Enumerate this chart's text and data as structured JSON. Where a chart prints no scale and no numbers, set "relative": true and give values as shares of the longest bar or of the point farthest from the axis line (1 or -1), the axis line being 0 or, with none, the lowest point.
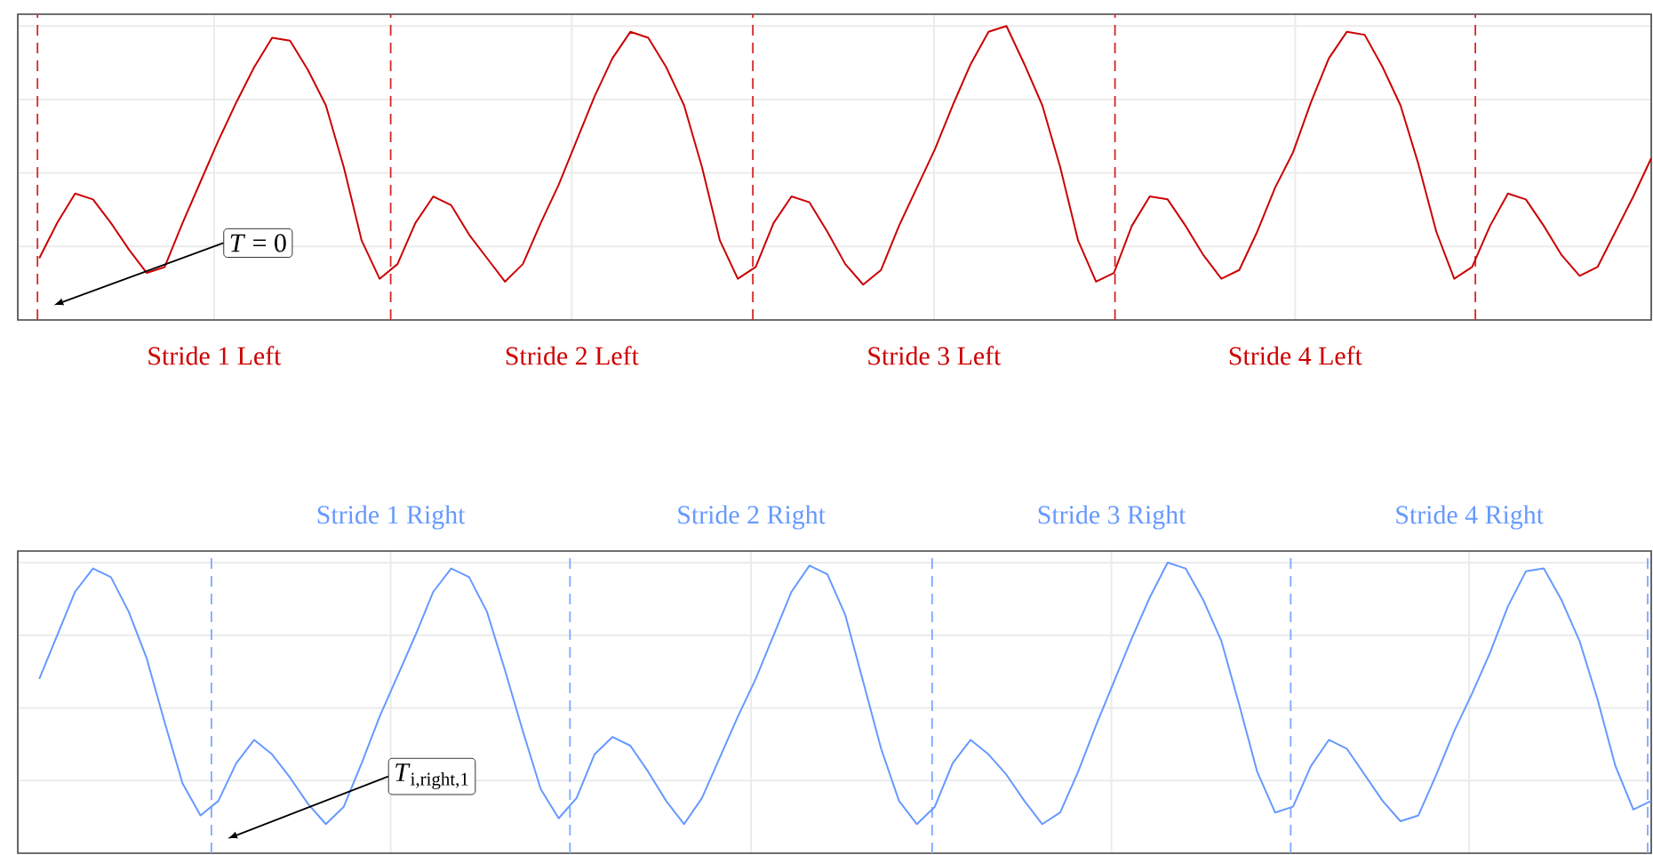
{
  "chart_data": [
    {
      "type": "line",
      "relative": true,
      "grid": true,
      "tick_labels": false,
      "categories": [
        null,
        null,
        null,
        null,
        null,
        null,
        null,
        null,
        null,
        null,
        null,
        null,
        null,
        null,
        null,
        null,
        null,
        null,
        null,
        null,
        null,
        null,
        null,
        null,
        null,
        null,
        null,
        null,
        null,
        null,
        null,
        null,
        null,
        null,
        null,
        null,
        null,
        null,
        null,
        null,
        null,
        null,
        null,
        null,
        null,
        null,
        null,
        null,
        null,
        null,
        null,
        null,
        null,
        null,
        null,
        null,
        null,
        null,
        null,
        null,
        null,
        null,
        null,
        null,
        null,
        null,
        null,
        null,
        null,
        null,
        null,
        null,
        null,
        null,
        null,
        null,
        null,
        null,
        null,
        null,
        null,
        null,
        null,
        null,
        null,
        null,
        null,
        null,
        null,
        null,
        null
      ],
      "series": [
        {
          "color": "#cc0000",
          "values": [
            0.21,
            0.33,
            0.43,
            0.41,
            0.33,
            0.24,
            0.16,
            0.18,
            0.33,
            0.47,
            0.61,
            0.74,
            0.86,
            0.96,
            0.95,
            0.85,
            0.73,
            0.52,
            0.27,
            0.14,
            0.19,
            0.33,
            0.42,
            0.39,
            0.29,
            0.21,
            0.13,
            0.19,
            0.33,
            0.46,
            0.61,
            0.76,
            0.89,
            0.98,
            0.96,
            0.86,
            0.73,
            0.52,
            0.27,
            0.14,
            0.18,
            0.33,
            0.42,
            0.4,
            0.3,
            0.19,
            0.12,
            0.17,
            0.32,
            0.45,
            0.58,
            0.73,
            0.87,
            0.98,
            1.0,
            0.87,
            0.73,
            0.52,
            0.27,
            0.13,
            0.16,
            0.32,
            0.42,
            0.41,
            0.32,
            0.22,
            0.14,
            0.17,
            0.3,
            0.45,
            0.57,
            0.74,
            0.89,
            0.98,
            0.97,
            0.86,
            0.73,
            0.53,
            0.3,
            0.14,
            0.18,
            0.32,
            0.43,
            0.41,
            0.32,
            0.22,
            0.15,
            0.18,
            0.3,
            0.42,
            0.55
          ]
        }
      ],
      "annotations": [
        "*T* = 0",
        "Stride 1 Left",
        "Stride 2 Left",
        "Stride 3 Left",
        "Stride 4 Left"
      ]
    },
    {
      "type": "line",
      "relative": true,
      "grid": true,
      "tick_labels": false,
      "categories": [
        null,
        null,
        null,
        null,
        null,
        null,
        null,
        null,
        null,
        null,
        null,
        null,
        null,
        null,
        null,
        null,
        null,
        null,
        null,
        null,
        null,
        null,
        null,
        null,
        null,
        null,
        null,
        null,
        null,
        null,
        null,
        null,
        null,
        null,
        null,
        null,
        null,
        null,
        null,
        null,
        null,
        null,
        null,
        null,
        null,
        null,
        null,
        null,
        null,
        null,
        null,
        null,
        null,
        null,
        null,
        null,
        null,
        null,
        null,
        null,
        null,
        null,
        null,
        null,
        null,
        null,
        null,
        null,
        null,
        null,
        null,
        null,
        null,
        null,
        null,
        null,
        null,
        null,
        null,
        null,
        null,
        null,
        null,
        null,
        null,
        null,
        null,
        null,
        null,
        null,
        null
      ],
      "series": [
        {
          "color": "#6699ff",
          "values": [
            0.6,
            0.75,
            0.9,
            0.98,
            0.95,
            0.83,
            0.67,
            0.45,
            0.24,
            0.13,
            0.18,
            0.31,
            0.39,
            0.34,
            0.26,
            0.17,
            0.1,
            0.16,
            0.31,
            0.47,
            0.61,
            0.75,
            0.9,
            0.98,
            0.95,
            0.83,
            0.63,
            0.42,
            0.22,
            0.12,
            0.19,
            0.34,
            0.4,
            0.37,
            0.28,
            0.18,
            0.1,
            0.19,
            0.33,
            0.47,
            0.6,
            0.75,
            0.9,
            0.99,
            0.96,
            0.82,
            0.59,
            0.36,
            0.18,
            0.1,
            0.16,
            0.31,
            0.39,
            0.34,
            0.27,
            0.18,
            0.1,
            0.14,
            0.28,
            0.44,
            0.59,
            0.74,
            0.88,
            1.0,
            0.98,
            0.87,
            0.73,
            0.51,
            0.28,
            0.14,
            0.16,
            0.3,
            0.39,
            0.36,
            0.27,
            0.18,
            0.11,
            0.13,
            0.27,
            0.42,
            0.55,
            0.69,
            0.85,
            0.97,
            0.98,
            0.87,
            0.73,
            0.53,
            0.3,
            0.15,
            0.18
          ]
        }
      ],
      "annotations": [
        "*T*$_{i,right,1}$",
        "Stride 1 Right",
        "Stride 2 Right",
        "Stride 3 Right",
        "Stride 4 Right"
      ]
    }
  ]
}
